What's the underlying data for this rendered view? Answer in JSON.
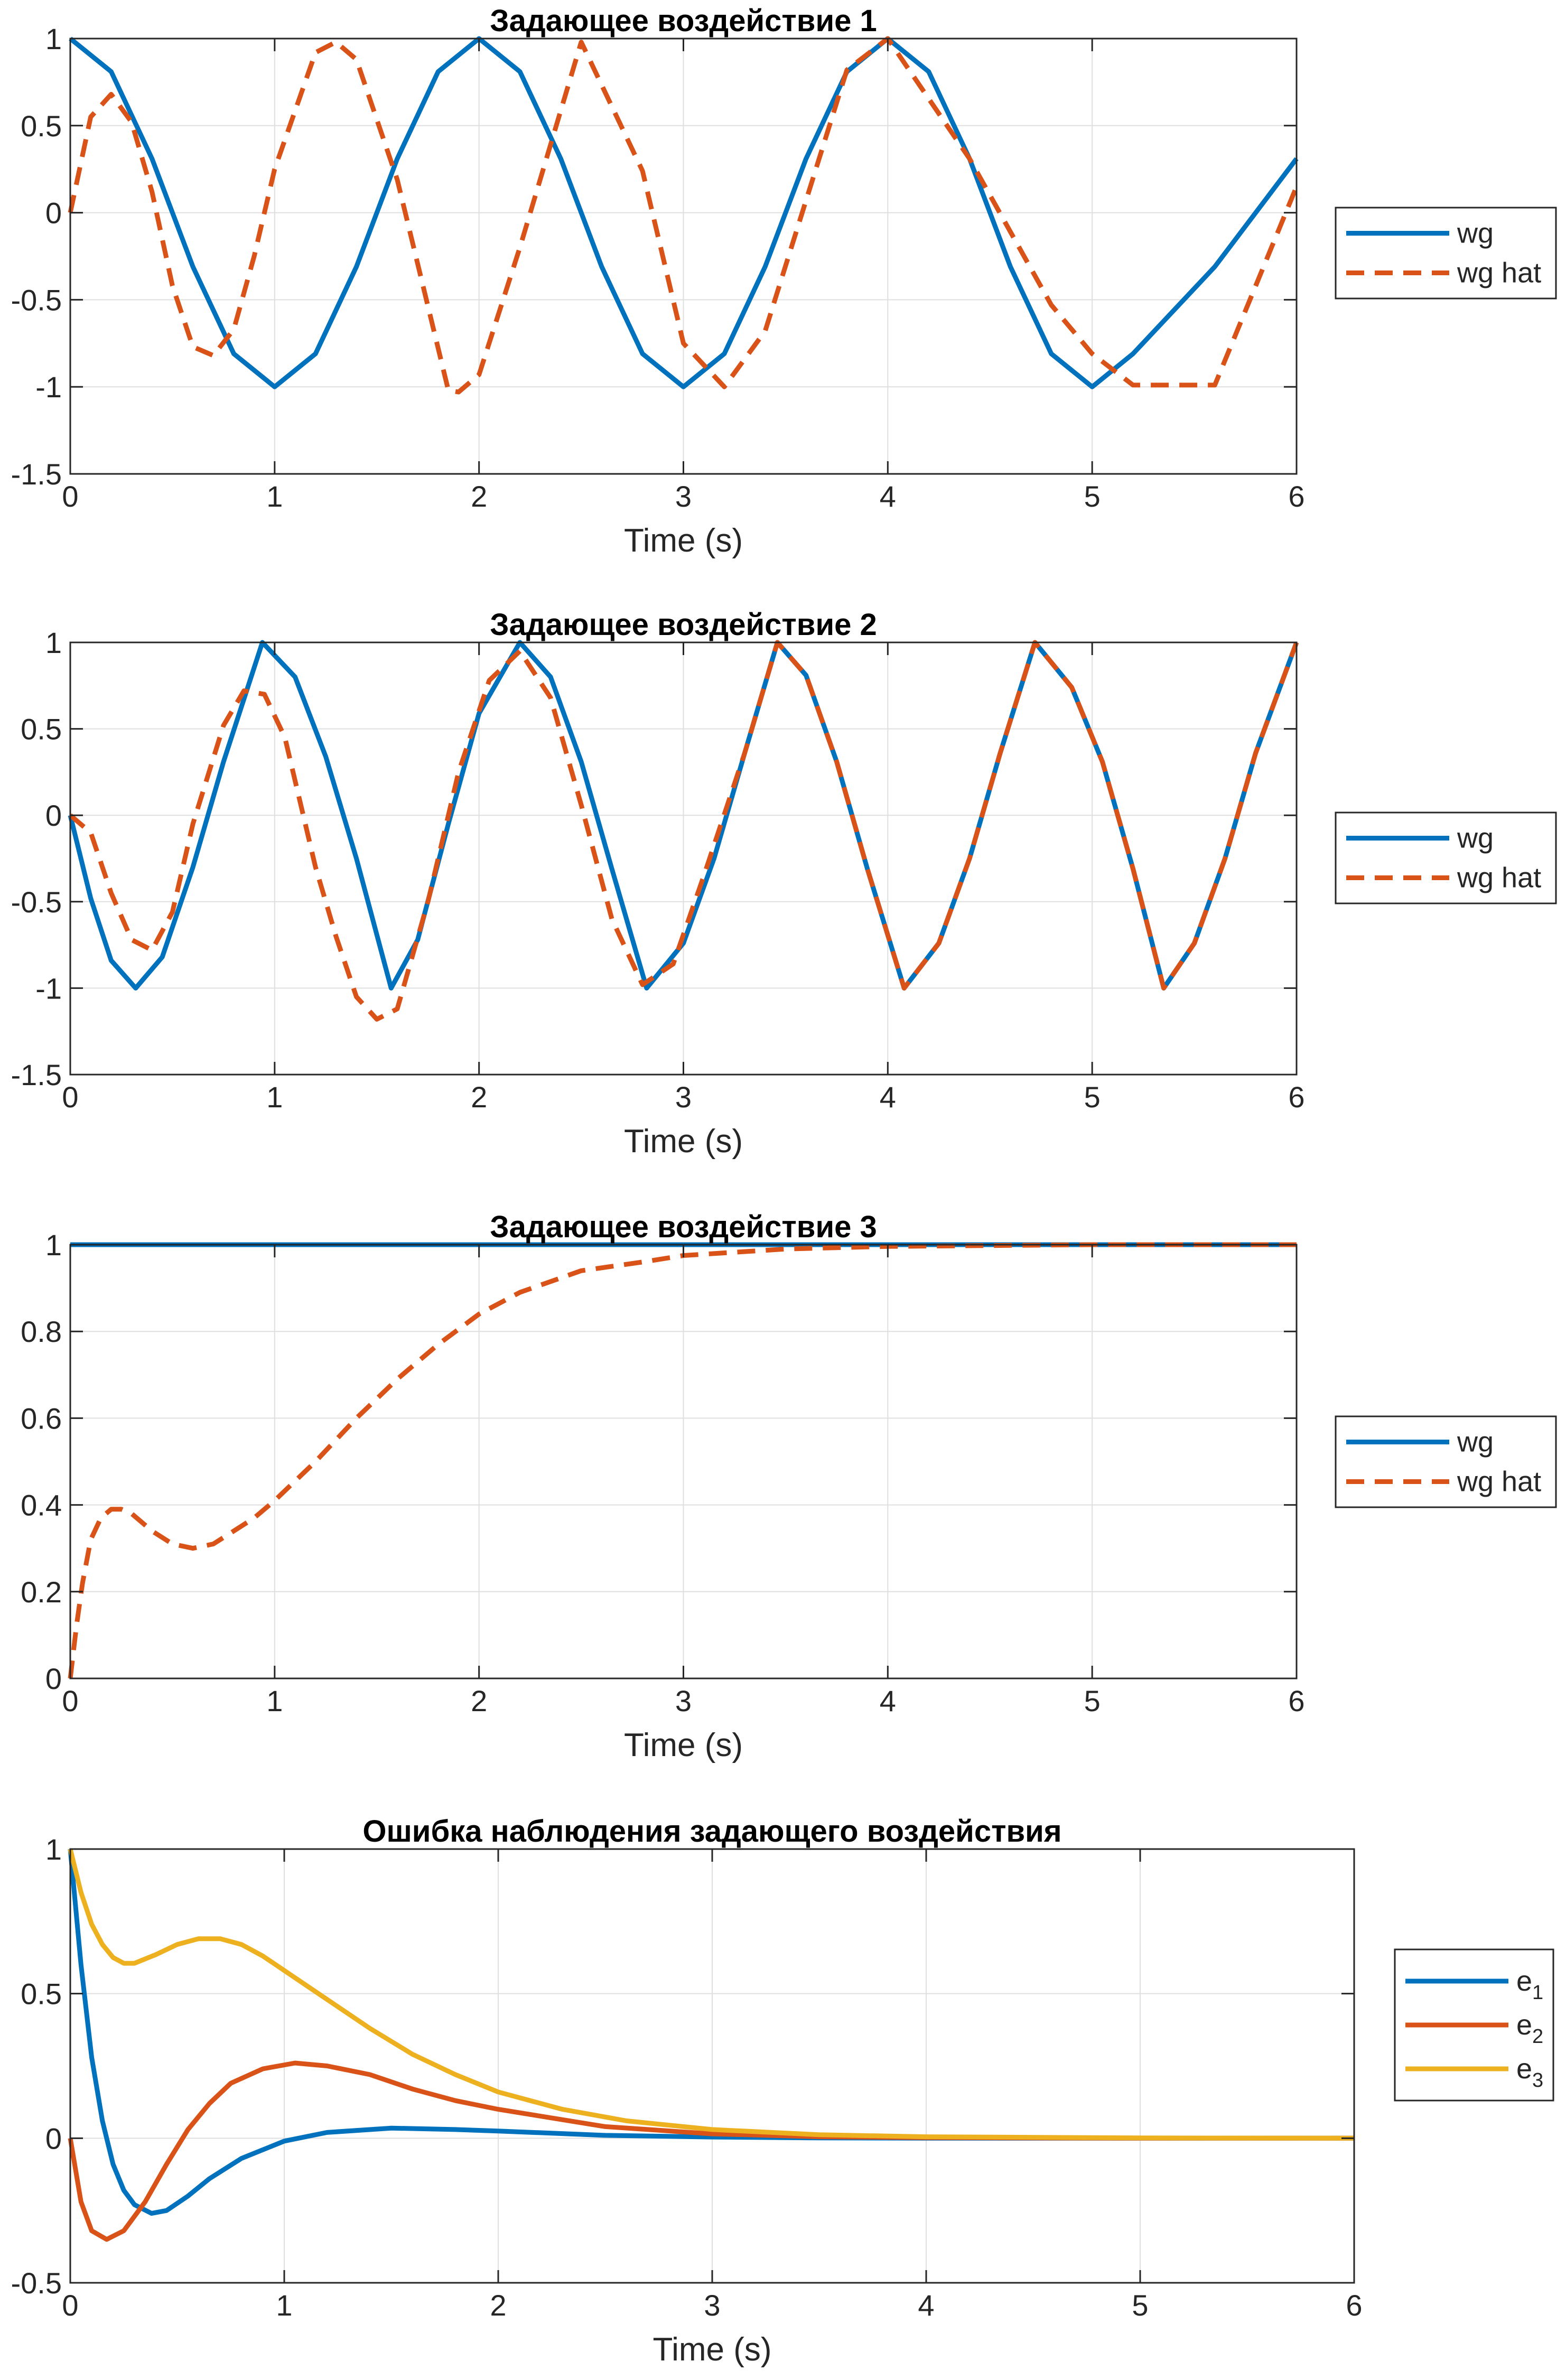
{
  "colors": {
    "blue": "#0072BD",
    "orange": "#D95319",
    "yellow": "#EDB120",
    "grid": "#DFDFDF",
    "axis": "#262626"
  },
  "chart_data": [
    {
      "type": "line",
      "title": "Задающее воздействие 1",
      "xlabel": "Time (s)",
      "ylabel": "",
      "xlim": [
        0,
        6
      ],
      "ylim": [
        -1.5,
        1
      ],
      "xticks": [
        "0",
        "1",
        "2",
        "3",
        "4",
        "5",
        "6"
      ],
      "yticks": [
        "-1.5",
        "-1",
        "-0.5",
        "0",
        "0.5",
        "1"
      ],
      "grid": true,
      "legend_position": "outside-right",
      "series": [
        {
          "name": "wg",
          "style": "solid",
          "color": "#0072BD",
          "x": [
            0,
            0.2,
            0.4,
            0.6,
            0.8,
            1.0,
            1.2,
            1.4,
            1.6,
            1.8,
            2.0,
            2.2,
            2.4,
            2.6,
            2.8,
            3.0,
            3.2,
            3.4,
            3.6,
            3.8,
            4.0,
            4.2,
            4.4,
            4.6,
            4.8,
            5.0,
            5.2,
            5.6,
            6.0
          ],
          "y": [
            1.0,
            0.81,
            0.31,
            -0.31,
            -0.81,
            -1.0,
            -0.81,
            -0.31,
            0.31,
            0.81,
            1.0,
            0.81,
            0.31,
            -0.31,
            -0.81,
            -1.0,
            -0.81,
            -0.31,
            0.31,
            0.81,
            1.0,
            0.81,
            0.31,
            -0.31,
            -0.81,
            -1.0,
            -0.81,
            -0.31,
            0.31
          ]
        },
        {
          "name": "wg hat",
          "style": "dashed",
          "color": "#D95319",
          "x": [
            0,
            0.1,
            0.2,
            0.3,
            0.4,
            0.5,
            0.6,
            0.7,
            0.8,
            0.9,
            1.0,
            1.2,
            1.3,
            1.4,
            1.6,
            1.85,
            1.9,
            2.0,
            2.2,
            2.5,
            2.8,
            3.0,
            3.2,
            3.4,
            3.8,
            4.0,
            4.4,
            4.8,
            5.0,
            5.2,
            5.6,
            6.0
          ],
          "y": [
            0.0,
            0.55,
            0.68,
            0.52,
            0.12,
            -0.42,
            -0.77,
            -0.82,
            -0.67,
            -0.25,
            0.25,
            0.92,
            0.98,
            0.88,
            0.19,
            -1.02,
            -1.03,
            -0.93,
            -0.2,
            0.98,
            0.24,
            -0.75,
            -1.0,
            -0.68,
            0.82,
            1.0,
            0.31,
            -0.53,
            -0.81,
            -0.99,
            -0.99,
            0.15
          ]
        }
      ]
    },
    {
      "type": "line",
      "title": "Задающее воздействие 2",
      "xlabel": "Time (s)",
      "ylabel": "",
      "xlim": [
        0,
        6
      ],
      "ylim": [
        -1.5,
        1
      ],
      "xticks": [
        "0",
        "1",
        "2",
        "3",
        "4",
        "5",
        "6"
      ],
      "yticks": [
        "-1.5",
        "-1",
        "-0.5",
        "0",
        "0.5",
        "1"
      ],
      "grid": true,
      "legend_position": "outside-right",
      "series": [
        {
          "name": "wg",
          "style": "solid",
          "color": "#0072BD",
          "x": [
            0,
            0.1,
            0.2,
            0.32,
            0.45,
            0.6,
            0.75,
            0.94,
            1.1,
            1.25,
            1.4,
            1.57,
            1.7,
            1.85,
            2.0,
            2.2,
            2.35,
            2.5,
            2.65,
            2.82,
            3.0,
            3.15,
            3.3,
            3.46,
            3.6,
            3.75,
            3.9,
            4.08,
            4.25,
            4.4,
            4.55,
            4.72,
            4.9,
            5.05,
            5.2,
            5.35,
            5.5,
            5.65,
            5.8,
            6.0
          ],
          "y": [
            0.0,
            -0.48,
            -0.84,
            -1.0,
            -0.82,
            -0.3,
            0.31,
            1.0,
            0.8,
            0.34,
            -0.25,
            -1.0,
            -0.72,
            -0.05,
            0.59,
            1.0,
            0.8,
            0.31,
            -0.31,
            -1.0,
            -0.74,
            -0.25,
            0.36,
            1.0,
            0.81,
            0.31,
            -0.31,
            -1.0,
            -0.74,
            -0.25,
            0.36,
            1.0,
            0.74,
            0.31,
            -0.31,
            -1.0,
            -0.74,
            -0.25,
            0.36,
            1.0
          ]
        },
        {
          "name": "wg hat",
          "style": "dashed",
          "color": "#D95319",
          "x": [
            0,
            0.1,
            0.2,
            0.3,
            0.4,
            0.5,
            0.6,
            0.75,
            0.85,
            0.95,
            1.05,
            1.2,
            1.3,
            1.4,
            1.5,
            1.6,
            1.75,
            1.9,
            2.05,
            2.2,
            2.35,
            2.5,
            2.65,
            2.8,
            2.95,
            3.1,
            3.3,
            3.46,
            3.6,
            3.75,
            3.9,
            4.08,
            4.25,
            4.4,
            4.55,
            4.72,
            4.9,
            5.05,
            5.2,
            5.35,
            5.5,
            5.65,
            5.8,
            6.0
          ],
          "y": [
            0.0,
            -0.1,
            -0.45,
            -0.72,
            -0.78,
            -0.56,
            -0.05,
            0.52,
            0.72,
            0.7,
            0.45,
            -0.3,
            -0.7,
            -1.05,
            -1.18,
            -1.12,
            -0.5,
            0.25,
            0.78,
            0.95,
            0.68,
            0.06,
            -0.6,
            -0.98,
            -0.86,
            -0.35,
            0.36,
            1.0,
            0.81,
            0.31,
            -0.31,
            -1.0,
            -0.74,
            -0.25,
            0.36,
            1.0,
            0.74,
            0.31,
            -0.31,
            -1.0,
            -0.74,
            -0.25,
            0.36,
            1.0
          ]
        }
      ]
    },
    {
      "type": "line",
      "title": "Задающее воздействие 3",
      "xlabel": "Time (s)",
      "ylabel": "",
      "xlim": [
        0,
        6
      ],
      "ylim": [
        0,
        1
      ],
      "xticks": [
        "0",
        "1",
        "2",
        "3",
        "4",
        "5",
        "6"
      ],
      "yticks": [
        "0",
        "0.2",
        "0.4",
        "0.6",
        "0.8",
        "1"
      ],
      "grid": true,
      "legend_position": "outside-right",
      "series": [
        {
          "name": "wg",
          "style": "solid",
          "color": "#0072BD",
          "x": [
            0,
            6
          ],
          "y": [
            1.0,
            1.0
          ]
        },
        {
          "name": "wg hat",
          "style": "dashed",
          "color": "#D95319",
          "x": [
            0,
            0.03,
            0.06,
            0.1,
            0.15,
            0.2,
            0.25,
            0.3,
            0.4,
            0.5,
            0.6,
            0.7,
            0.8,
            0.9,
            1.0,
            1.2,
            1.4,
            1.6,
            1.8,
            2.0,
            2.2,
            2.5,
            2.8,
            3.0,
            3.5,
            4.0,
            5.0,
            6.0
          ],
          "y": [
            0.0,
            0.12,
            0.22,
            0.32,
            0.37,
            0.39,
            0.39,
            0.38,
            0.34,
            0.31,
            0.3,
            0.31,
            0.34,
            0.37,
            0.41,
            0.5,
            0.6,
            0.69,
            0.77,
            0.84,
            0.89,
            0.94,
            0.96,
            0.975,
            0.99,
            0.996,
            1.0,
            1.0
          ]
        }
      ]
    },
    {
      "type": "line",
      "title": "Ошибка наблюдения задающего воздействия",
      "xlabel": "Time (s)",
      "ylabel": "",
      "xlim": [
        0,
        6
      ],
      "ylim": [
        -0.5,
        1
      ],
      "xticks": [
        "0",
        "1",
        "2",
        "3",
        "4",
        "5",
        "6"
      ],
      "yticks": [
        "-0.5",
        "0",
        "0.5",
        "1"
      ],
      "grid": true,
      "legend_position": "outside-right",
      "series": [
        {
          "name": "e",
          "sub": "1",
          "style": "solid",
          "color": "#0072BD",
          "x": [
            0,
            0.05,
            0.1,
            0.15,
            0.2,
            0.25,
            0.3,
            0.38,
            0.45,
            0.55,
            0.65,
            0.8,
            1.0,
            1.2,
            1.5,
            1.8,
            2.0,
            2.5,
            3.0,
            3.5,
            4.0,
            5.0,
            6.0
          ],
          "y": [
            1.0,
            0.6,
            0.28,
            0.06,
            -0.09,
            -0.18,
            -0.23,
            -0.26,
            -0.25,
            -0.2,
            -0.14,
            -0.07,
            -0.01,
            0.02,
            0.035,
            0.03,
            0.025,
            0.01,
            0.004,
            0.001,
            0.0,
            0.0,
            0.0
          ]
        },
        {
          "name": "e",
          "sub": "2",
          "style": "solid",
          "color": "#D95319",
          "x": [
            0,
            0.05,
            0.1,
            0.17,
            0.25,
            0.35,
            0.45,
            0.55,
            0.65,
            0.75,
            0.9,
            1.05,
            1.2,
            1.4,
            1.6,
            1.8,
            2.0,
            2.5,
            3.0,
            3.5,
            4.0,
            5.0,
            6.0
          ],
          "y": [
            0.0,
            -0.22,
            -0.32,
            -0.35,
            -0.32,
            -0.22,
            -0.09,
            0.03,
            0.12,
            0.19,
            0.24,
            0.26,
            0.25,
            0.22,
            0.17,
            0.13,
            0.1,
            0.04,
            0.015,
            0.005,
            0.002,
            0.0,
            0.0
          ]
        },
        {
          "name": "e",
          "sub": "3",
          "style": "solid",
          "color": "#EDB120",
          "x": [
            0,
            0.05,
            0.1,
            0.15,
            0.2,
            0.25,
            0.3,
            0.4,
            0.5,
            0.6,
            0.7,
            0.8,
            0.9,
            1.0,
            1.2,
            1.4,
            1.6,
            1.8,
            2.0,
            2.3,
            2.6,
            3.0,
            3.5,
            4.0,
            5.0,
            6.0
          ],
          "y": [
            1.0,
            0.85,
            0.74,
            0.67,
            0.625,
            0.605,
            0.605,
            0.635,
            0.67,
            0.69,
            0.69,
            0.67,
            0.63,
            0.58,
            0.48,
            0.38,
            0.29,
            0.22,
            0.16,
            0.1,
            0.06,
            0.03,
            0.012,
            0.005,
            0.001,
            0.0
          ]
        }
      ]
    }
  ]
}
